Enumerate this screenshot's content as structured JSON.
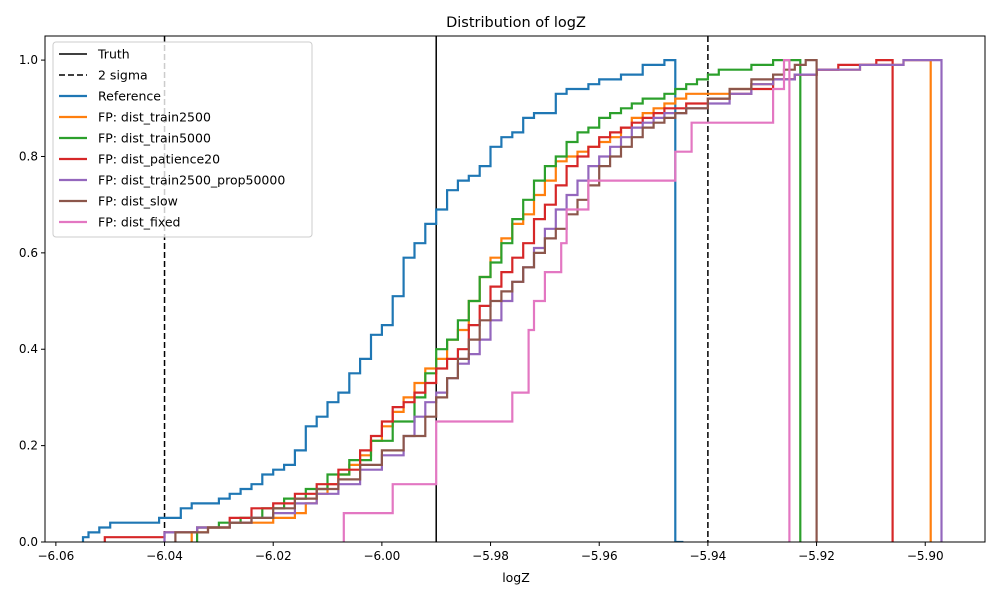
{
  "chart_data": {
    "type": "line",
    "title": "Distribution of logZ",
    "xlabel": "logZ",
    "ylabel": "",
    "xlim": [
      -6.062,
      -5.889
    ],
    "ylim": [
      0.0,
      1.05
    ],
    "xticks": [
      -6.06,
      -6.04,
      -6.02,
      -6.0,
      -5.98,
      -5.96,
      -5.94,
      -5.92,
      -5.9
    ],
    "xtick_labels": [
      "−6.06",
      "−6.04",
      "−6.02",
      "−6.00",
      "−5.98",
      "−5.96",
      "−5.94",
      "−5.92",
      "−5.90"
    ],
    "yticks": [
      0.0,
      0.2,
      0.4,
      0.6,
      0.8,
      1.0
    ],
    "ytick_labels": [
      "0.0",
      "0.2",
      "0.4",
      "0.6",
      "0.8",
      "1.0"
    ],
    "grid": false,
    "legend_position": "top-left",
    "reference_lines": [
      {
        "name": "Truth",
        "x": -5.99,
        "style": "solid",
        "color": "#000000"
      },
      {
        "name": "2 sigma",
        "x": -6.04,
        "style": "dashed",
        "color": "#000000"
      },
      {
        "name": "2 sigma",
        "x": -5.94,
        "style": "dashed",
        "color": "#000000"
      }
    ],
    "series": [
      {
        "name": "Reference",
        "color": "#1f77b4",
        "x": [
          -6.055,
          -6.054,
          -6.052,
          -6.05,
          -6.046,
          -6.041,
          -6.037,
          -6.035,
          -6.033,
          -6.03,
          -6.028,
          -6.026,
          -6.024,
          -6.022,
          -6.02,
          -6.018,
          -6.016,
          -6.014,
          -6.012,
          -6.01,
          -6.008,
          -6.006,
          -6.004,
          -6.002,
          -6.0,
          -5.998,
          -5.996,
          -5.994,
          -5.992,
          -5.99,
          -5.988,
          -5.986,
          -5.984,
          -5.982,
          -5.98,
          -5.978,
          -5.976,
          -5.974,
          -5.972,
          -5.97,
          -5.968,
          -5.966,
          -5.964,
          -5.962,
          -5.96,
          -5.958,
          -5.956,
          -5.954,
          -5.952,
          -5.948,
          -5.946,
          -5.9445
        ],
        "y": [
          0.01,
          0.02,
          0.03,
          0.04,
          0.04,
          0.05,
          0.07,
          0.08,
          0.08,
          0.09,
          0.1,
          0.11,
          0.12,
          0.14,
          0.15,
          0.16,
          0.19,
          0.24,
          0.26,
          0.29,
          0.31,
          0.35,
          0.38,
          0.43,
          0.45,
          0.51,
          0.59,
          0.62,
          0.66,
          0.69,
          0.73,
          0.75,
          0.76,
          0.78,
          0.82,
          0.84,
          0.85,
          0.88,
          0.89,
          0.89,
          0.93,
          0.94,
          0.94,
          0.95,
          0.96,
          0.96,
          0.97,
          0.97,
          0.99,
          1.0,
          0.0,
          0.0
        ]
      },
      {
        "name": "FP: dist_train2500",
        "color": "#ff7f0e",
        "x": [
          -6.035,
          -6.032,
          -6.028,
          -6.024,
          -6.02,
          -6.016,
          -6.014,
          -6.012,
          -6.01,
          -6.008,
          -6.006,
          -6.004,
          -6.002,
          -6.0,
          -5.998,
          -5.996,
          -5.994,
          -5.992,
          -5.99,
          -5.988,
          -5.986,
          -5.984,
          -5.982,
          -5.98,
          -5.978,
          -5.976,
          -5.974,
          -5.972,
          -5.97,
          -5.968,
          -5.966,
          -5.964,
          -5.962,
          -5.96,
          -5.958,
          -5.956,
          -5.954,
          -5.952,
          -5.95,
          -5.948,
          -5.946,
          -5.944,
          -5.94,
          -5.936,
          -5.932,
          -5.928,
          -5.924,
          -5.92,
          -5.916,
          -5.912,
          -5.908,
          -5.904,
          -5.901,
          -5.899
        ],
        "y": [
          0.02,
          0.03,
          0.04,
          0.04,
          0.05,
          0.06,
          0.08,
          0.1,
          0.12,
          0.14,
          0.16,
          0.18,
          0.21,
          0.24,
          0.27,
          0.3,
          0.33,
          0.36,
          0.38,
          0.42,
          0.44,
          0.5,
          0.55,
          0.59,
          0.63,
          0.66,
          0.68,
          0.72,
          0.75,
          0.79,
          0.8,
          0.81,
          0.82,
          0.83,
          0.84,
          0.86,
          0.88,
          0.89,
          0.9,
          0.91,
          0.92,
          0.93,
          0.93,
          0.94,
          0.95,
          0.96,
          0.97,
          0.98,
          0.98,
          0.99,
          0.99,
          1.0,
          1.0,
          0.0
        ]
      },
      {
        "name": "FP: dist_train5000",
        "color": "#2ca02c",
        "x": [
          -6.034,
          -6.03,
          -6.026,
          -6.022,
          -6.018,
          -6.014,
          -6.01,
          -6.006,
          -6.002,
          -5.998,
          -5.994,
          -5.992,
          -5.99,
          -5.988,
          -5.986,
          -5.984,
          -5.982,
          -5.98,
          -5.978,
          -5.976,
          -5.974,
          -5.972,
          -5.97,
          -5.968,
          -5.966,
          -5.964,
          -5.962,
          -5.96,
          -5.958,
          -5.956,
          -5.954,
          -5.952,
          -5.95,
          -5.948,
          -5.946,
          -5.944,
          -5.942,
          -5.94,
          -5.938,
          -5.936,
          -5.932,
          -5.928,
          -5.926,
          -5.923
        ],
        "y": [
          0.03,
          0.04,
          0.05,
          0.07,
          0.09,
          0.11,
          0.14,
          0.17,
          0.21,
          0.25,
          0.3,
          0.35,
          0.4,
          0.42,
          0.46,
          0.5,
          0.55,
          0.58,
          0.62,
          0.67,
          0.71,
          0.75,
          0.78,
          0.8,
          0.83,
          0.85,
          0.86,
          0.88,
          0.89,
          0.9,
          0.91,
          0.92,
          0.92,
          0.93,
          0.94,
          0.95,
          0.96,
          0.97,
          0.98,
          0.98,
          0.99,
          1.0,
          1.0,
          0.0
        ]
      },
      {
        "name": "FP: dist_patience20",
        "color": "#d62728",
        "x": [
          -6.051,
          -6.04,
          -6.034,
          -6.028,
          -6.024,
          -6.02,
          -6.016,
          -6.012,
          -6.008,
          -6.004,
          -6.002,
          -6.0,
          -5.998,
          -5.996,
          -5.994,
          -5.992,
          -5.99,
          -5.988,
          -5.986,
          -5.984,
          -5.982,
          -5.98,
          -5.978,
          -5.976,
          -5.974,
          -5.972,
          -5.97,
          -5.968,
          -5.966,
          -5.964,
          -5.962,
          -5.96,
          -5.958,
          -5.956,
          -5.954,
          -5.952,
          -5.95,
          -5.948,
          -5.946,
          -5.944,
          -5.94,
          -5.936,
          -5.932,
          -5.928,
          -5.924,
          -5.92,
          -5.916,
          -5.912,
          -5.909,
          -5.906
        ],
        "y": [
          0.01,
          0.02,
          0.03,
          0.05,
          0.07,
          0.08,
          0.1,
          0.12,
          0.15,
          0.19,
          0.22,
          0.25,
          0.28,
          0.29,
          0.31,
          0.33,
          0.36,
          0.38,
          0.4,
          0.45,
          0.49,
          0.53,
          0.56,
          0.59,
          0.62,
          0.67,
          0.7,
          0.74,
          0.78,
          0.8,
          0.82,
          0.84,
          0.85,
          0.86,
          0.87,
          0.88,
          0.89,
          0.9,
          0.9,
          0.91,
          0.92,
          0.93,
          0.94,
          0.96,
          0.97,
          0.98,
          0.99,
          0.99,
          1.0,
          0.0
        ]
      },
      {
        "name": "FP: dist_train2500_prop50000",
        "color": "#9467bd",
        "x": [
          -6.04,
          -6.034,
          -6.028,
          -6.024,
          -6.02,
          -6.016,
          -6.012,
          -6.008,
          -6.004,
          -6.0,
          -5.996,
          -5.994,
          -5.992,
          -5.99,
          -5.988,
          -5.986,
          -5.984,
          -5.982,
          -5.98,
          -5.978,
          -5.976,
          -5.974,
          -5.972,
          -5.97,
          -5.968,
          -5.966,
          -5.964,
          -5.962,
          -5.96,
          -5.958,
          -5.956,
          -5.954,
          -5.952,
          -5.95,
          -5.948,
          -5.946,
          -5.944,
          -5.94,
          -5.936,
          -5.932,
          -5.928,
          -5.924,
          -5.92,
          -5.916,
          -5.912,
          -5.908,
          -5.904,
          -5.901,
          -5.897
        ],
        "y": [
          0.02,
          0.03,
          0.04,
          0.05,
          0.06,
          0.08,
          0.1,
          0.12,
          0.15,
          0.18,
          0.22,
          0.26,
          0.29,
          0.31,
          0.34,
          0.37,
          0.39,
          0.42,
          0.46,
          0.5,
          0.54,
          0.57,
          0.61,
          0.65,
          0.69,
          0.72,
          0.75,
          0.78,
          0.8,
          0.82,
          0.84,
          0.86,
          0.87,
          0.88,
          0.89,
          0.89,
          0.9,
          0.91,
          0.93,
          0.95,
          0.96,
          0.97,
          0.98,
          0.98,
          0.99,
          0.99,
          1.0,
          1.0,
          0.0
        ]
      },
      {
        "name": "FP: dist_slow",
        "color": "#8c564b",
        "x": [
          -6.038,
          -6.032,
          -6.028,
          -6.024,
          -6.02,
          -6.016,
          -6.012,
          -6.008,
          -6.004,
          -6.0,
          -5.996,
          -5.992,
          -5.99,
          -5.988,
          -5.986,
          -5.984,
          -5.982,
          -5.98,
          -5.978,
          -5.976,
          -5.974,
          -5.972,
          -5.97,
          -5.968,
          -5.966,
          -5.964,
          -5.962,
          -5.96,
          -5.958,
          -5.956,
          -5.954,
          -5.952,
          -5.95,
          -5.948,
          -5.946,
          -5.944,
          -5.94,
          -5.936,
          -5.932,
          -5.928,
          -5.926,
          -5.924,
          -5.922,
          -5.92
        ],
        "y": [
          0.02,
          0.03,
          0.04,
          0.05,
          0.07,
          0.09,
          0.11,
          0.13,
          0.16,
          0.19,
          0.22,
          0.26,
          0.3,
          0.34,
          0.38,
          0.42,
          0.46,
          0.5,
          0.52,
          0.54,
          0.57,
          0.6,
          0.63,
          0.65,
          0.68,
          0.71,
          0.74,
          0.78,
          0.8,
          0.82,
          0.84,
          0.86,
          0.87,
          0.88,
          0.89,
          0.9,
          0.92,
          0.94,
          0.96,
          0.97,
          0.98,
          0.99,
          1.0,
          0.0
        ]
      },
      {
        "name": "FP: dist_fixed",
        "color": "#e377c2",
        "x": [
          -6.007,
          -5.998,
          -5.99,
          -5.984,
          -5.976,
          -5.973,
          -5.972,
          -5.97,
          -5.967,
          -5.966,
          -5.962,
          -5.958,
          -5.954,
          -5.95,
          -5.946,
          -5.943,
          -5.94,
          -5.936,
          -5.932,
          -5.928,
          -5.926,
          -5.925
        ],
        "y": [
          0.06,
          0.12,
          0.25,
          0.25,
          0.31,
          0.44,
          0.5,
          0.56,
          0.62,
          0.69,
          0.75,
          0.75,
          0.75,
          0.75,
          0.81,
          0.87,
          0.87,
          0.87,
          0.87,
          0.94,
          1.0,
          0.0
        ]
      }
    ]
  }
}
